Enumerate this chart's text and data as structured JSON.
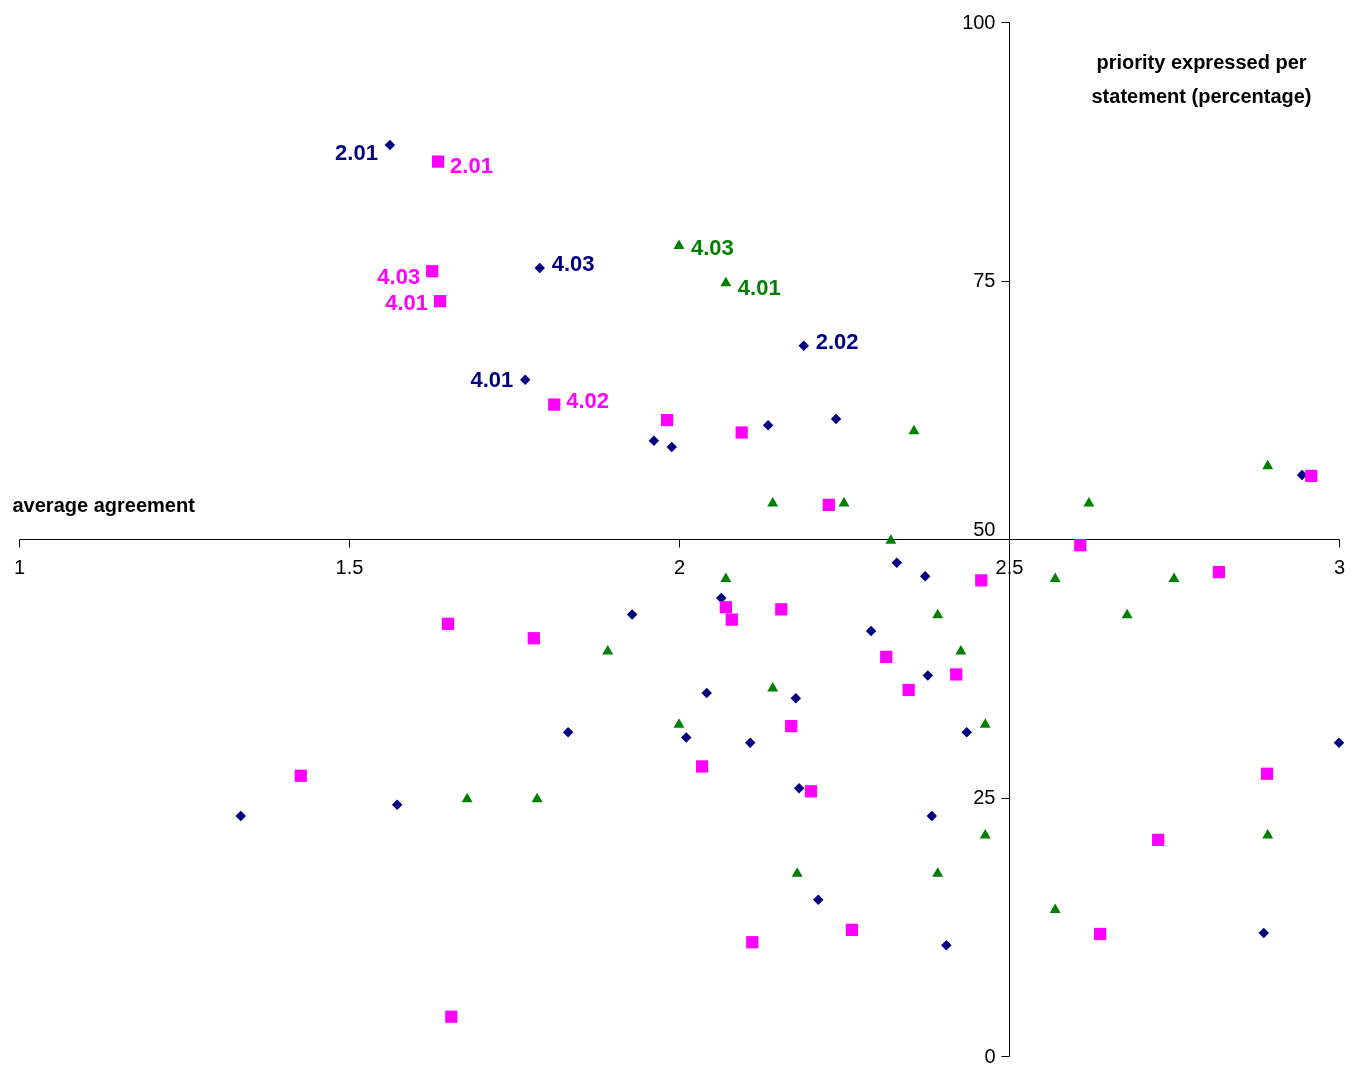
{
  "chart_data": {
    "type": "scatter",
    "xlabel": "average agreement",
    "ylabel": "priority expressed per statement (percentage)",
    "xlim": [
      1,
      3
    ],
    "xticks": [
      1,
      1.5,
      2,
      2.5,
      3
    ],
    "ylim": [
      0,
      100
    ],
    "yticks": [
      0,
      25,
      50,
      75,
      100
    ],
    "series": [
      {
        "color": "#000080",
        "marker": "diamond",
        "x": [
          1.562,
          1.789,
          2.189,
          1.767,
          1.962,
          1.989,
          2.135,
          2.238,
          2.944,
          2.33,
          2.373,
          2.064,
          1.929,
          2.291,
          2.377,
          2.042,
          2.177,
          1.832,
          2.011,
          2.108,
          2.436,
          3.0,
          2.182,
          1.573,
          1.336,
          2.383,
          2.211,
          2.405,
          2.886
        ],
        "values": [
          88.1,
          76.2,
          68.7,
          65.4,
          59.5,
          58.9,
          61.0,
          61.6,
          56.2,
          47.7,
          46.4,
          44.3,
          42.7,
          41.1,
          36.8,
          35.1,
          34.6,
          31.3,
          30.8,
          30.3,
          31.3,
          30.3,
          25.9,
          24.3,
          23.2,
          23.2,
          15.1,
          10.7,
          11.9
        ]
      },
      {
        "color": "#ff00ff",
        "marker": "square",
        "x": [
          1.635,
          1.626,
          1.638,
          1.811,
          1.982,
          2.095,
          2.227,
          2.958,
          2.608,
          2.458,
          2.818,
          2.071,
          2.08,
          2.155,
          1.65,
          1.78,
          2.314,
          2.42,
          2.348,
          2.17,
          2.035,
          1.427,
          2.891,
          2.2,
          2.726,
          2.262,
          2.111,
          2.638,
          1.655
        ],
        "values": [
          86.5,
          75.9,
          73.0,
          63.0,
          61.5,
          60.3,
          53.3,
          56.1,
          49.4,
          46.0,
          46.8,
          43.4,
          42.2,
          43.2,
          41.8,
          40.4,
          38.6,
          36.9,
          35.4,
          31.9,
          28.0,
          27.1,
          27.3,
          25.6,
          20.9,
          12.2,
          11.0,
          11.8,
          3.8
        ]
      },
      {
        "color": "#008000",
        "marker": "triangle",
        "x": [
          2.0,
          2.071,
          2.356,
          2.142,
          2.25,
          2.621,
          2.892,
          2.321,
          2.071,
          2.57,
          2.75,
          2.392,
          2.679,
          1.892,
          2.427,
          2.142,
          2.0,
          2.464,
          1.679,
          1.785,
          2.464,
          2.892,
          2.179,
          2.392,
          2.57
        ],
        "values": [
          78.5,
          74.9,
          60.6,
          53.6,
          53.6,
          53.6,
          57.2,
          50.0,
          46.3,
          46.3,
          46.3,
          42.8,
          42.8,
          39.3,
          39.3,
          35.7,
          32.2,
          32.2,
          25.0,
          25.0,
          21.5,
          21.5,
          17.8,
          17.8,
          14.3
        ]
      }
    ],
    "annotations": [
      {
        "text": "2.01",
        "x": 1.562,
        "y": 88.1
      },
      {
        "text": "2.01",
        "x": 1.635,
        "y": 86.5
      },
      {
        "text": "4.03",
        "x": 1.789,
        "y": 76.2
      },
      {
        "text": "4.03",
        "x": 2.0,
        "y": 78.5
      },
      {
        "text": "4.01",
        "x": 2.071,
        "y": 74.9
      },
      {
        "text": "4.03",
        "x": 1.626,
        "y": 75.9
      },
      {
        "text": "4.01",
        "x": 1.638,
        "y": 73.0
      },
      {
        "text": "2.02",
        "x": 2.189,
        "y": 68.7
      },
      {
        "text": "4.01",
        "x": 1.767,
        "y": 65.4
      },
      {
        "text": "4.02",
        "x": 1.811,
        "y": 63.0
      }
    ]
  }
}
